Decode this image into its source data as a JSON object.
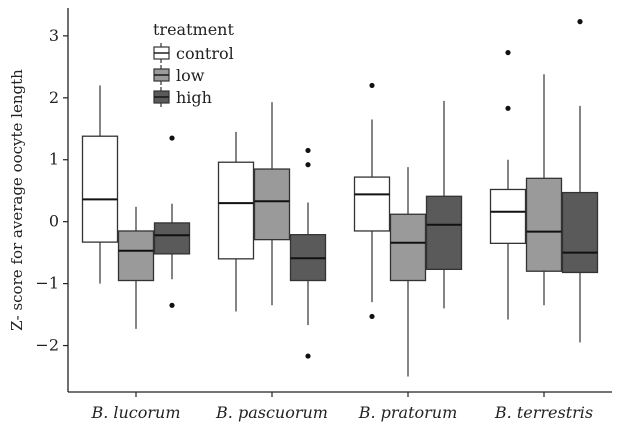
{
  "chart_data": {
    "type": "boxplot",
    "ylabel": "Z- score for average oocyte length",
    "xlabel": "",
    "ylim": [
      -2.75,
      3.45
    ],
    "yticks": [
      -2,
      -1,
      0,
      1,
      2,
      3
    ],
    "categories": [
      "B. lucorum",
      "B. pascuorum",
      "B. pratorum",
      "B. terrestris"
    ],
    "legend": {
      "title": "treatment",
      "position": "top-left",
      "items": [
        {
          "name": "control",
          "color": "#ffffff"
        },
        {
          "name": "low",
          "color": "#9a9a9a"
        },
        {
          "name": "high",
          "color": "#5a5a5a"
        }
      ]
    },
    "series": [
      {
        "name": "control",
        "color": "#ffffff",
        "boxes": [
          {
            "whisker_low": -1.0,
            "q1": -0.33,
            "median": 0.36,
            "q3": 1.38,
            "whisker_high": 2.2,
            "outliers": []
          },
          {
            "whisker_low": -1.45,
            "q1": -0.6,
            "median": 0.3,
            "q3": 0.96,
            "whisker_high": 1.45,
            "outliers": []
          },
          {
            "whisker_low": -1.3,
            "q1": -0.15,
            "median": 0.44,
            "q3": 0.72,
            "whisker_high": 1.65,
            "outliers": [
              2.2,
              -1.53
            ]
          },
          {
            "whisker_low": -1.58,
            "q1": -0.35,
            "median": 0.16,
            "q3": 0.52,
            "whisker_high": 1.0,
            "outliers": [
              2.73,
              1.83
            ]
          }
        ]
      },
      {
        "name": "low",
        "color": "#9a9a9a",
        "boxes": [
          {
            "whisker_low": -1.73,
            "q1": -0.95,
            "median": -0.47,
            "q3": -0.15,
            "whisker_high": 0.24,
            "outliers": []
          },
          {
            "whisker_low": -1.35,
            "q1": -0.29,
            "median": 0.33,
            "q3": 0.85,
            "whisker_high": 1.93,
            "outliers": []
          },
          {
            "whisker_low": -2.5,
            "q1": -0.95,
            "median": -0.34,
            "q3": 0.12,
            "whisker_high": 0.88,
            "outliers": []
          },
          {
            "whisker_low": -1.35,
            "q1": -0.8,
            "median": -0.16,
            "q3": 0.7,
            "whisker_high": 2.38,
            "outliers": []
          }
        ]
      },
      {
        "name": "high",
        "color": "#5a5a5a",
        "boxes": [
          {
            "whisker_low": -0.93,
            "q1": -0.52,
            "median": -0.22,
            "q3": -0.02,
            "whisker_high": 0.29,
            "outliers": [
              1.35,
              -1.35
            ]
          },
          {
            "whisker_low": -1.67,
            "q1": -0.95,
            "median": -0.59,
            "q3": -0.21,
            "whisker_high": 0.31,
            "outliers": [
              1.15,
              0.92,
              -2.17
            ]
          },
          {
            "whisker_low": -1.4,
            "q1": -0.77,
            "median": -0.05,
            "q3": 0.41,
            "whisker_high": 1.95,
            "outliers": []
          },
          {
            "whisker_low": -1.95,
            "q1": -0.82,
            "median": -0.5,
            "q3": 0.47,
            "whisker_high": 1.87,
            "outliers": [
              3.23
            ]
          }
        ]
      }
    ],
    "grid": false
  }
}
